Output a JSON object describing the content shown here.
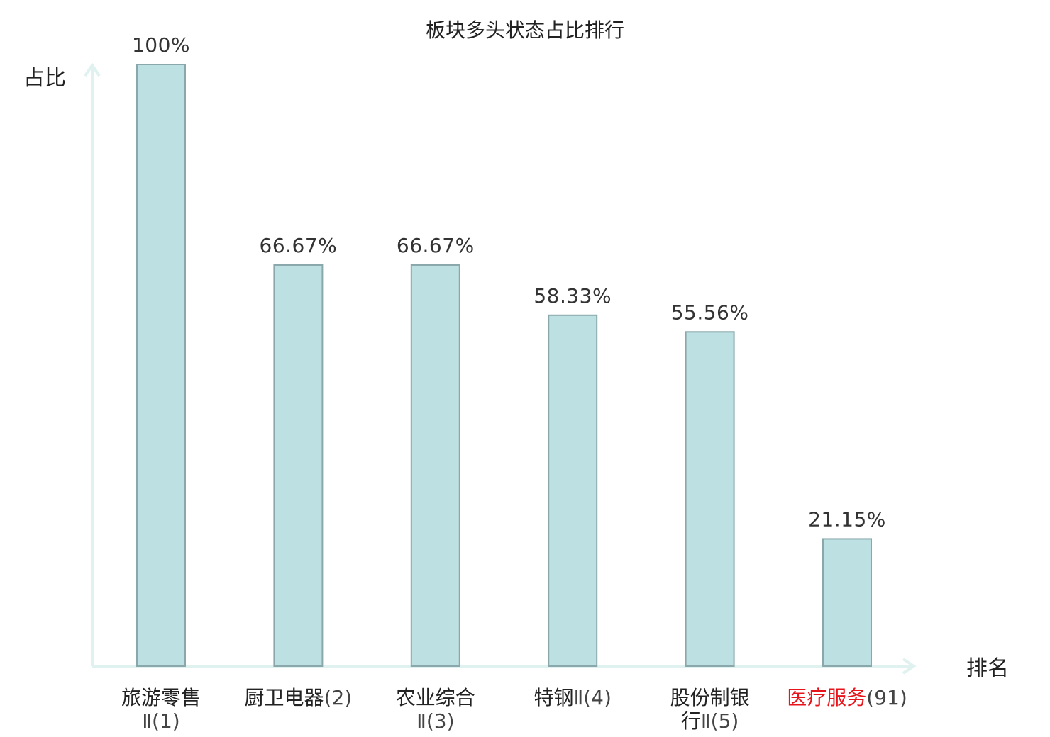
{
  "chart_data": {
    "type": "bar",
    "title": "板块多头状态占比排行",
    "xlabel": "排名",
    "ylabel": "占比",
    "ylim": [
      0,
      100
    ],
    "grid": false,
    "highlight_color": "#e8141b",
    "bar_color": "#bde0e2",
    "categories": [
      {
        "lines": [
          {
            "main": "旅游零售",
            "suffix": ""
          },
          {
            "main": "",
            "suffix": "Ⅱ(1)"
          }
        ],
        "highlight": false
      },
      {
        "lines": [
          {
            "main": "厨卫电器",
            "suffix": "(2)"
          }
        ],
        "highlight": false
      },
      {
        "lines": [
          {
            "main": "农业综合",
            "suffix": ""
          },
          {
            "main": "",
            "suffix": "Ⅱ(3)"
          }
        ],
        "highlight": false
      },
      {
        "lines": [
          {
            "main": "特钢",
            "suffix": "Ⅱ(4)"
          }
        ],
        "highlight": false
      },
      {
        "lines": [
          {
            "main": "股份制银",
            "suffix": ""
          },
          {
            "main": "行",
            "suffix": "Ⅱ(5)"
          }
        ],
        "highlight": false
      },
      {
        "lines": [
          {
            "main": "医疗服务",
            "suffix": "(91)"
          }
        ],
        "highlight": true
      }
    ],
    "values": [
      100,
      66.67,
      66.67,
      58.33,
      55.56,
      21.15
    ],
    "value_labels": [
      "100%",
      "66.67%",
      "66.67%",
      "58.33%",
      "55.56%",
      "21.15%"
    ]
  }
}
